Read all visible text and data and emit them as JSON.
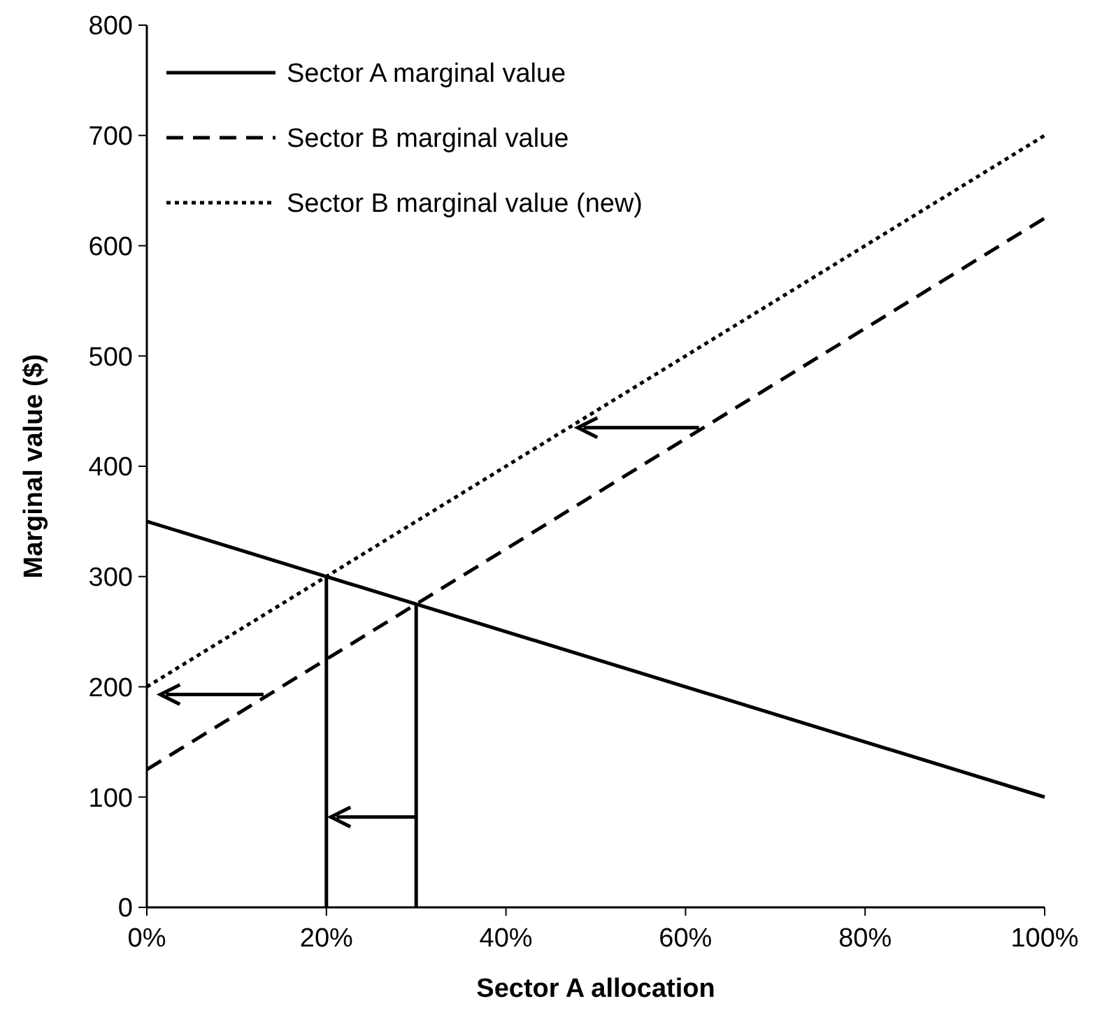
{
  "chart_data": {
    "type": "line",
    "xlabel": "Sector A allocation",
    "ylabel": "Marginal value ($)",
    "xlim": [
      0,
      100
    ],
    "xticks": [
      {
        "value": 0,
        "label": "0%"
      },
      {
        "value": 20,
        "label": "20%"
      },
      {
        "value": 40,
        "label": "40%"
      },
      {
        "value": 60,
        "label": "60%"
      },
      {
        "value": 80,
        "label": "80%"
      },
      {
        "value": 100,
        "label": "100%"
      }
    ],
    "ylim": [
      0,
      800
    ],
    "yticks": [
      0,
      100,
      200,
      300,
      400,
      500,
      600,
      700,
      800
    ],
    "grid": false,
    "legend": "top left",
    "series": [
      {
        "name": "Sector A marginal value",
        "color": "#000000",
        "line_style": "solid",
        "x": [
          0,
          100
        ],
        "values": [
          350,
          100
        ]
      },
      {
        "name": "Sector B marginal value",
        "color": "#000000",
        "line_style": "dashed",
        "x": [
          0,
          100
        ],
        "values": [
          125,
          625
        ]
      },
      {
        "name": "Sector B marginal value (new)",
        "color": "#000000",
        "line_style": "dotted",
        "x": [
          0,
          100
        ],
        "values": [
          200,
          700
        ]
      },
      {
        "color": "#000000",
        "line_style": "solid",
        "x": [
          20,
          20
        ],
        "values": [
          0,
          300
        ]
      },
      {
        "color": "#000000",
        "line_style": "solid",
        "x": [
          30,
          30
        ],
        "values": [
          0,
          275
        ]
      }
    ]
  }
}
